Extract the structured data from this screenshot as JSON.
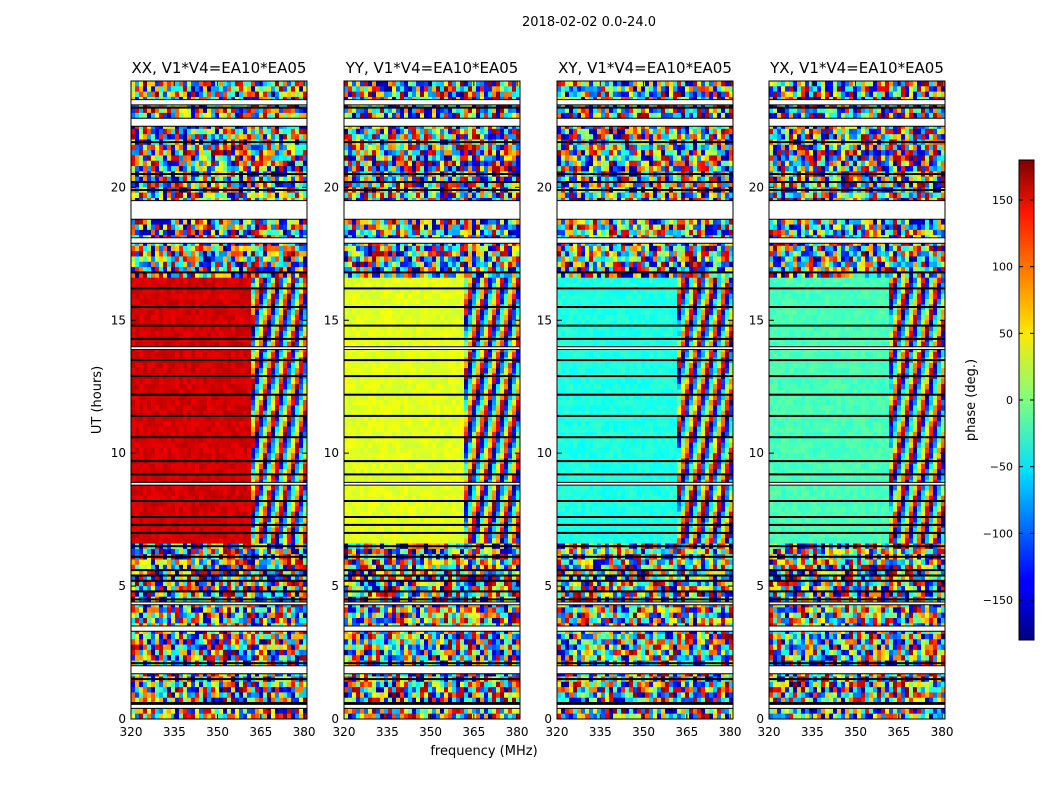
{
  "chart_data": {
    "type": "heatmap",
    "title": "2018-02-02 0.0-24.0",
    "xlabel": "frequency (MHz)",
    "ylabel": "UT (hours)",
    "xlim": [
      320,
      381
    ],
    "ylim": [
      0,
      24
    ],
    "x_ticks": [
      "320",
      "335",
      "350",
      "365",
      "380"
    ],
    "y_ticks": [
      "0",
      "5",
      "10",
      "15",
      "20"
    ],
    "colorbar": {
      "label": "phase (deg.)",
      "range": [
        -180,
        180
      ],
      "ticks": [
        "150",
        "100",
        "50",
        "0",
        "−50",
        "−100",
        "−150"
      ],
      "colormap": "jet"
    },
    "panels": [
      {
        "title": "XX, V1*V4=EA10*EA05",
        "flat_phase_deg": 150,
        "flat_band_mhz": [
          320,
          361
        ],
        "flat_ut_hours": [
          6.6,
          16.5
        ]
      },
      {
        "title": "YY, V1*V4=EA10*EA05",
        "flat_phase_deg": 35,
        "flat_band_mhz": [
          320,
          361
        ],
        "flat_ut_hours": [
          6.6,
          16.5
        ]
      },
      {
        "title": "XY, V1*V4=EA10*EA05",
        "flat_phase_deg": -35,
        "flat_band_mhz": [
          320,
          361
        ],
        "flat_ut_hours": [
          6.6,
          16.5
        ]
      },
      {
        "title": "YX, V1*V4=EA10*EA05",
        "flat_phase_deg": -20,
        "flat_band_mhz": [
          320,
          361
        ],
        "flat_ut_hours": [
          6.6,
          16.5
        ]
      }
    ],
    "blank_ut_bands": [
      [
        0.4,
        0.55
      ],
      [
        1.7,
        2.0
      ],
      [
        3.3,
        3.5
      ],
      [
        4.3,
        4.4
      ],
      [
        8.8,
        8.9
      ],
      [
        13.9,
        14.0
      ],
      [
        17.9,
        18.1
      ],
      [
        18.8,
        19.5
      ],
      [
        22.3,
        22.6
      ],
      [
        23.1,
        23.3
      ]
    ],
    "black_ut_lines": [
      0.6,
      1.5,
      2.1,
      4.5,
      4.8,
      5.2,
      5.4,
      5.6,
      6.1,
      6.5,
      7.0,
      7.3,
      7.6,
      8.2,
      9.2,
      9.7,
      10.6,
      11.4,
      12.2,
      12.9,
      13.5,
      14.3,
      14.8,
      15.5,
      16.2,
      16.8,
      19.9,
      20.2,
      20.5,
      21.7,
      23.0
    ]
  }
}
